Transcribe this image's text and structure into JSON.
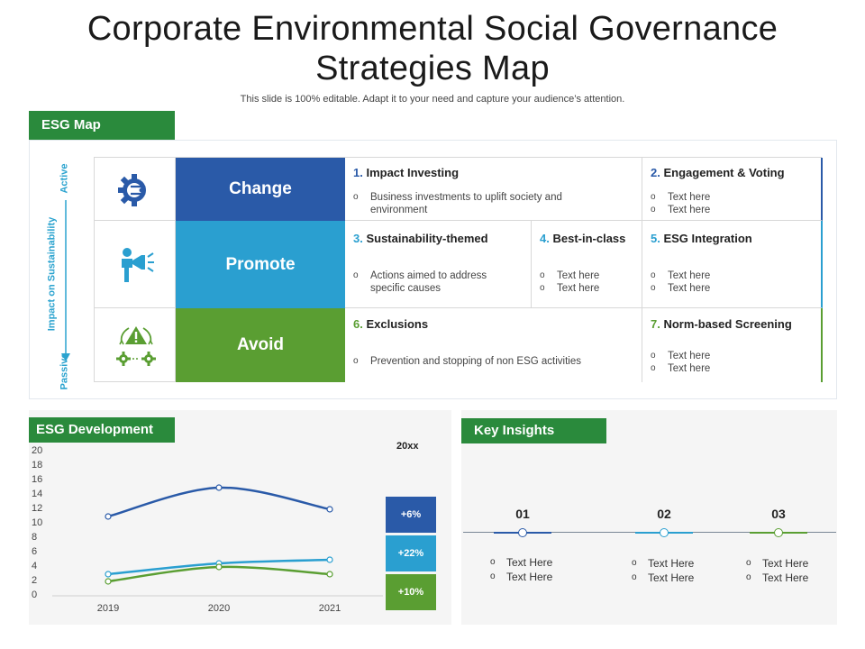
{
  "header": {
    "title_line1": "Corporate Environmental Social Governance",
    "title_line2": "Strategies Map",
    "subtitle": "This slide is 100% editable. Adapt it to your need and capture your audience’s attention."
  },
  "colors": {
    "green": "#2a8a3c",
    "dark_blue": "#2a5aa8",
    "light_blue": "#2a9fd0",
    "lime": "#5a9e32"
  },
  "esg_map": {
    "tab_label": "ESG Map",
    "axis": {
      "label": "Impact on Sustainability",
      "top": "Active",
      "bottom": "Passive"
    },
    "rows": [
      {
        "category": "Change",
        "icon": "gear-arrows-icon"
      },
      {
        "category": "Promote",
        "icon": "megaphone-person-icon"
      },
      {
        "category": "Avoid",
        "icon": "warning-gears-icon"
      }
    ],
    "strategies": {
      "s1": {
        "num": "1.",
        "title": "Impact Investing",
        "bullets": [
          "Business investments to uplift society and environment"
        ]
      },
      "s2": {
        "num": "2.",
        "title": "Engagement & Voting",
        "bullets": [
          "Text here",
          "Text here"
        ]
      },
      "s3": {
        "num": "3.",
        "title": "Sustainability-themed",
        "bullets": [
          "Actions aimed to address specific causes"
        ]
      },
      "s4": {
        "num": "4.",
        "title": "Best-in-class",
        "bullets": [
          "Text here",
          "Text here"
        ]
      },
      "s5": {
        "num": "5.",
        "title": "ESG Integration",
        "bullets": [
          "Text here",
          "Text here"
        ]
      },
      "s6": {
        "num": "6.",
        "title": "Exclusions",
        "bullets": [
          "Prevention and stopping of non ESG activities"
        ]
      },
      "s7": {
        "num": "7.",
        "title": "Norm-based Screening",
        "bullets": [
          "Text here",
          "Text here"
        ]
      }
    },
    "bullet_glyph": "o"
  },
  "esg_development": {
    "tab_label": "ESG Development",
    "year_label": "20xx",
    "changes": [
      "+6%",
      "+22%",
      "+10%"
    ]
  },
  "chart_data": {
    "type": "line",
    "x": [
      "2019",
      "2020",
      "2021"
    ],
    "ylim": [
      0,
      20
    ],
    "yticks": [
      0,
      2,
      4,
      6,
      8,
      10,
      12,
      14,
      16,
      18,
      20
    ],
    "series": [
      {
        "values": [
          11,
          15,
          12
        ],
        "color": "#2a5aa8"
      },
      {
        "values": [
          3,
          4.5,
          5
        ],
        "color": "#2a9fd0"
      },
      {
        "values": [
          2,
          4,
          3
        ],
        "color": "#5a9e32"
      }
    ],
    "grid": false
  },
  "key_insights": {
    "tab_label": "Key Insights",
    "items": [
      {
        "num": "01",
        "bullets": [
          "Text Here",
          "Text Here"
        ]
      },
      {
        "num": "02",
        "bullets": [
          "Text Here",
          "Text Here"
        ]
      },
      {
        "num": "03",
        "bullets": [
          "Text Here",
          "Text Here"
        ]
      }
    ]
  }
}
